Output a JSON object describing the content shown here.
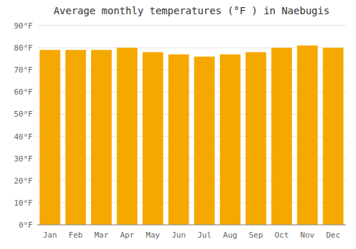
{
  "chart_data": {
    "type": "bar",
    "title": "Average monthly temperatures (°F ) in Naebugis",
    "categories": [
      "Jan",
      "Feb",
      "Mar",
      "Apr",
      "May",
      "Jun",
      "Jul",
      "Aug",
      "Sep",
      "Oct",
      "Nov",
      "Dec"
    ],
    "values": [
      79,
      79,
      79,
      80,
      78,
      77,
      76,
      77,
      78,
      80,
      81,
      80
    ],
    "color": "#F5A800",
    "ylim": [
      0,
      90
    ],
    "yticks": [
      {
        "value": 0,
        "label": "0°F"
      },
      {
        "value": 10,
        "label": "10°F"
      },
      {
        "value": 20,
        "label": "20°F"
      },
      {
        "value": 30,
        "label": "30°F"
      },
      {
        "value": 40,
        "label": "40°F"
      },
      {
        "value": 50,
        "label": "50°F"
      },
      {
        "value": 60,
        "label": "60°F"
      },
      {
        "value": 70,
        "label": "70°F"
      },
      {
        "value": 80,
        "label": "80°F"
      },
      {
        "value": 90,
        "label": "90°F"
      }
    ],
    "grid": true
  }
}
